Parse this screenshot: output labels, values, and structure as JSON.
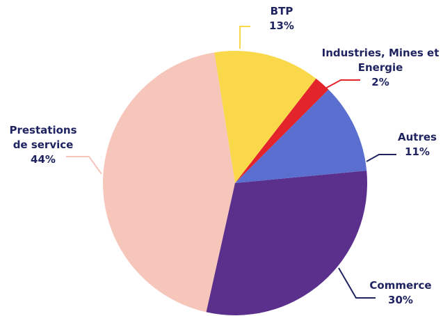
{
  "chart_data": {
    "type": "pie",
    "categories": [
      "BTP",
      "Industries, Mines et Energie",
      "Autres",
      "Commerce",
      "Prestations de service"
    ],
    "values": [
      13,
      2,
      11,
      30,
      44
    ],
    "value_labels": [
      "13%",
      "2%",
      "11%",
      "30%",
      "44%"
    ],
    "colors": [
      "#f9d84a",
      "#e3242b",
      "#5a6fd0",
      "#5b2f8c",
      "#f6c6bb"
    ],
    "start_angle": -9
  }
}
